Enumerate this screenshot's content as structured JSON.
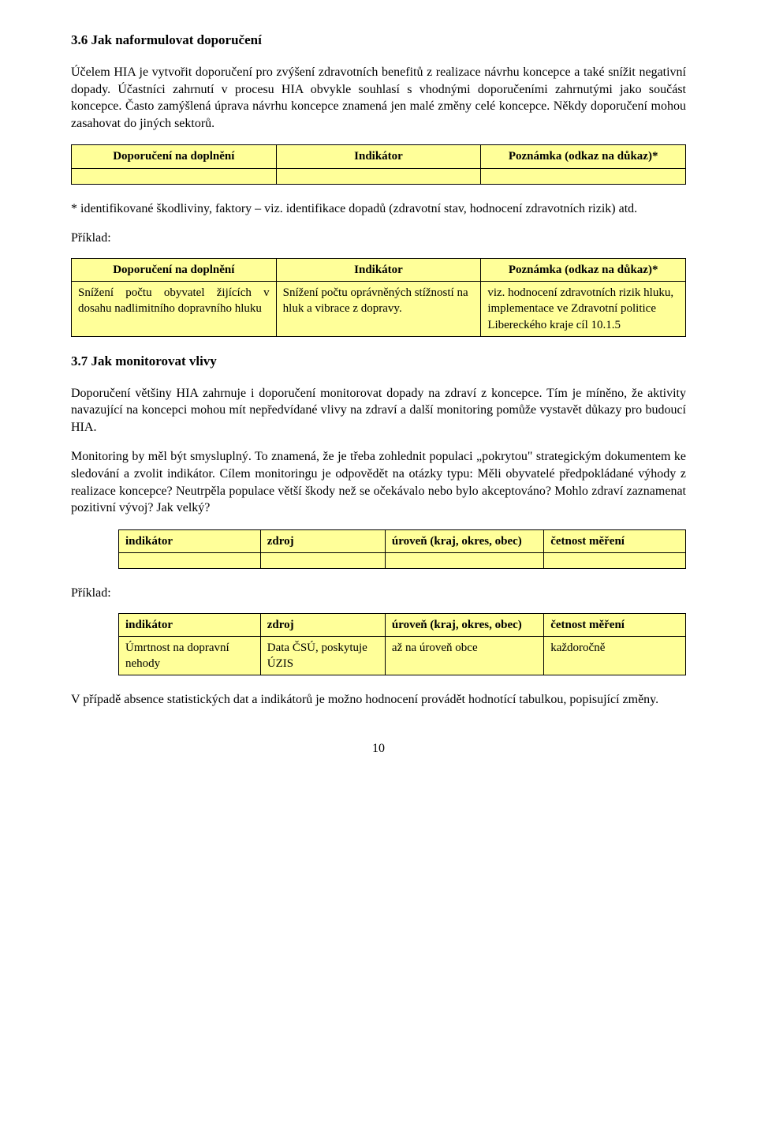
{
  "section36": {
    "heading": "3.6 Jak naformulovat doporučení",
    "para": "Účelem HIA je vytvořit doporučení pro zvýšení zdravotních benefitů z realizace návrhu koncepce a také snížit negativní dopady. Účastníci zahrnutí v procesu HIA obvykle souhlasí s vhodnými doporučeními zahrnutými jako součást koncepce. Často zamýšlená úprava návrhu koncepce znamená jen malé změny celé koncepce. Někdy doporučení mohou zasahovat do jiných sektorů."
  },
  "table1": {
    "headers": [
      "Doporučení na doplnění",
      "Indikátor",
      "Poznámka (odkaz na důkaz)*"
    ]
  },
  "note1": "* identifikované škodliviny, faktory – viz. identifikace dopadů (zdravotní stav, hodnocení zdravotních rizik) atd.",
  "example_label": "Příklad:",
  "table2": {
    "headers": [
      "Doporučení na doplnění",
      "Indikátor",
      "Poznámka (odkaz na důkaz)*"
    ],
    "row": [
      "Snížení počtu obyvatel žijících v dosahu nadlimitního dopravního hluku",
      "Snížení počtu oprávněných stížností na hluk a vibrace z dopravy.",
      "viz. hodnocení zdravotních rizik hluku, implementace ve Zdravotní politice Libereckého kraje cíl 10.1.5"
    ]
  },
  "section37": {
    "heading": "3.7 Jak monitorovat vlivy",
    "para1": "Doporučení většiny HIA zahrnuje i doporučení monitorovat dopady na zdraví z koncepce. Tím je míněno, že aktivity navazující na koncepci mohou mít nepředvídané vlivy na zdraví a další monitoring pomůže vystavět důkazy pro budoucí HIA.",
    "para2": "Monitoring by měl být smysluplný. To znamená, že je třeba zohlednit populaci „pokrytou\" strategickým dokumentem ke sledování a zvolit indikátor. Cílem monitoringu je odpovědět na otázky typu: Měli obyvatelé předpokládané výhody z realizace koncepce? Neutrpěla populace větší škody než se očekávalo nebo bylo akceptováno? Mohlo zdraví zaznamenat pozitivní vývoj? Jak velký?"
  },
  "table3": {
    "headers": [
      "indikátor",
      "zdroj",
      "úroveň (kraj, okres, obec)",
      "četnost měření"
    ]
  },
  "table4": {
    "headers": [
      "indikátor",
      "zdroj",
      "úroveň (kraj, okres, obec)",
      "četnost měření"
    ],
    "row": [
      "Úmrtnost na dopravní nehody",
      "Data ČSÚ, poskytuje ÚZIS",
      "až na úroveň obce",
      "každoročně"
    ]
  },
  "closing": "V případě absence statistických dat a indikátorů je možno hodnocení provádět hodnotící tabulkou, popisující změny.",
  "page": "10",
  "colors": {
    "table_bg": "#ffff99",
    "table_border": "#000000",
    "text": "#000000",
    "page_bg": "#ffffff"
  }
}
